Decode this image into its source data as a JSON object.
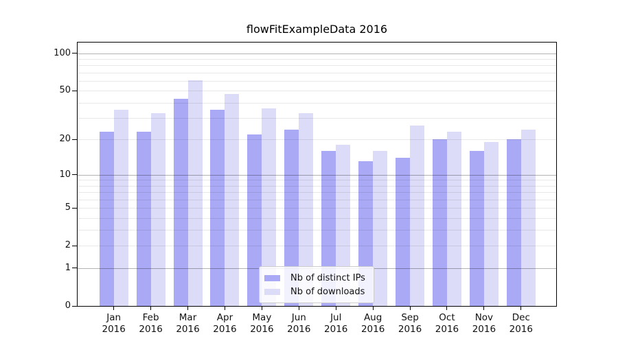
{
  "title": "flowFitExampleData 2016",
  "chart_data": {
    "type": "bar",
    "title": "flowFitExampleData 2016",
    "categories": [
      "Jan",
      "Feb",
      "Mar",
      "Apr",
      "May",
      "Jun",
      "Jul",
      "Aug",
      "Sep",
      "Oct",
      "Nov",
      "Dec"
    ],
    "category_year": "2016",
    "series": [
      {
        "name": "Nb of distinct IPs",
        "color": "#a9a9f5",
        "values": [
          23,
          23,
          43,
          35,
          22,
          24,
          16,
          13,
          14,
          20,
          16,
          20
        ]
      },
      {
        "name": "Nb of downloads",
        "color": "#dcdcf8",
        "values": [
          35,
          33,
          61,
          47,
          36,
          33,
          18,
          16,
          26,
          23,
          19,
          24
        ]
      }
    ],
    "xlabel": "",
    "ylabel": "",
    "yscale": "log1p",
    "ylim": [
      0,
      122
    ],
    "ytick_labels": [
      100,
      50,
      20,
      10,
      5,
      2,
      1,
      0
    ],
    "grid": "on",
    "grid_major": [
      1,
      10,
      100
    ],
    "grid_minor": [
      2,
      3,
      4,
      5,
      6,
      7,
      8,
      9,
      20,
      30,
      40,
      50,
      60,
      70,
      80,
      90
    ],
    "legend_position": "lower center"
  },
  "colors": {
    "distinct_ips": "#a9a9f5",
    "downloads": "#dcdcf8",
    "spine": "#000000",
    "grid_major": "#b3b3b3",
    "grid_minor": "#e8e8e8",
    "background": "#ffffff",
    "text": "#111111"
  }
}
